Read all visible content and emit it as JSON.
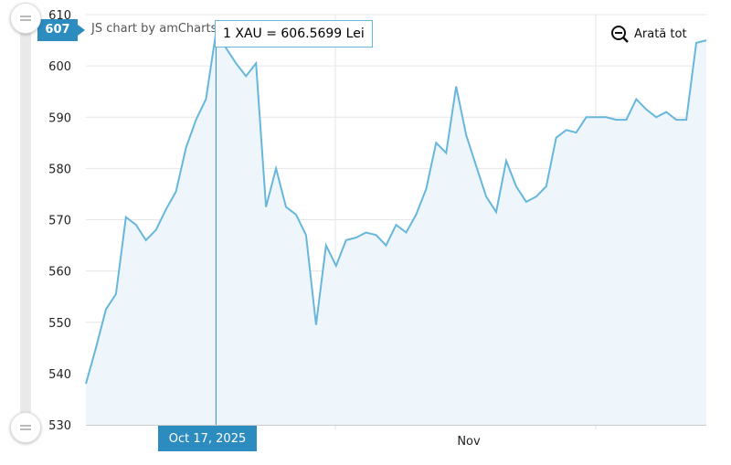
{
  "chart_data": {
    "type": "area",
    "x_tick_labels": [
      "Nov"
    ],
    "ylim": [
      530,
      610
    ],
    "y_ticks": [
      530,
      540,
      550,
      560,
      570,
      580,
      590,
      600,
      610
    ],
    "series": [
      {
        "values": [
          538,
          545,
          552.5,
          555.5,
          570.5,
          569,
          566,
          568,
          572,
          575.5,
          584,
          589.5,
          593.5,
          606.57,
          603.5,
          600.5,
          598,
          600.5,
          572.5,
          580,
          572.5,
          571,
          567,
          549.5,
          565,
          561,
          566,
          566.5,
          567.5,
          567,
          565,
          569,
          567.5,
          571,
          576,
          585,
          583,
          596,
          586.5,
          580.5,
          574.5,
          571.5,
          581.5,
          576.5,
          573.5,
          574.5,
          576.5,
          586,
          587.5,
          587,
          590,
          590,
          590,
          589.5,
          589.5,
          593.5,
          591.5,
          590,
          591,
          589.5,
          589.5,
          604.5,
          605
        ]
      }
    ],
    "line_color": "#67b7dc",
    "fill_color": "#eef6fb",
    "grid": true,
    "legend": "none",
    "selected_index": 13
  },
  "tooltip": {
    "text": "1 XAU = 606.5699 Lei"
  },
  "cursor": {
    "y_value_label": "607",
    "x_date_label": "Oct 17, 2025"
  },
  "credit": "JS chart by amCharts",
  "zoom_out": {
    "label": "Arată tot",
    "icon": "magnifier-minus-icon"
  },
  "colors": {
    "accent": "#2c8bbf",
    "line": "#67b7dc"
  }
}
